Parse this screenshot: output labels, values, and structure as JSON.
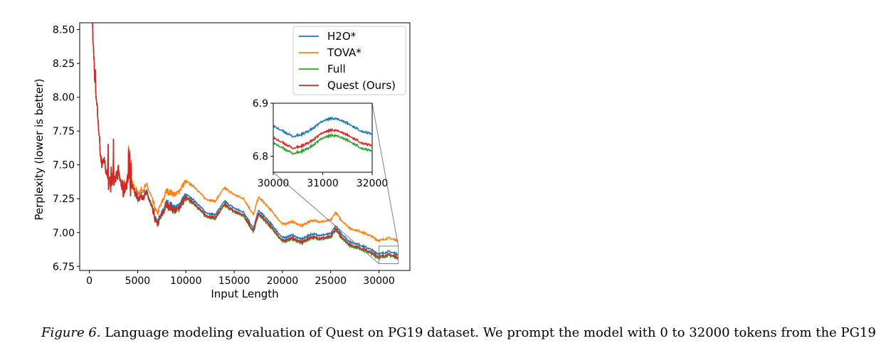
{
  "chart_data": {
    "type": "line",
    "title": "",
    "xlabel": "Input Length",
    "ylabel": "Perplexity (lower is better)",
    "xlim": [
      -1000,
      33200
    ],
    "ylim": [
      6.72,
      8.55
    ],
    "xticks": [
      0,
      5000,
      10000,
      15000,
      20000,
      25000,
      30000
    ],
    "yticks": [
      6.75,
      7.0,
      7.25,
      7.5,
      7.75,
      8.0,
      8.25,
      8.5
    ],
    "xtick_labels": [
      "0",
      "5000",
      "10000",
      "15000",
      "20000",
      "25000",
      "30000"
    ],
    "ytick_labels": [
      "6.75",
      "7.00",
      "7.25",
      "7.50",
      "7.75",
      "8.00",
      "8.25",
      "8.50"
    ],
    "grid": false,
    "legend_position": "top-right",
    "series": [
      {
        "name": "H2O*",
        "color": "#1f77b4",
        "offset_from_full": 0.03
      },
      {
        "name": "TOVA*",
        "color": "#ff7f0e",
        "offset_from_full": 0.13
      },
      {
        "name": "Full",
        "color": "#2ca02c",
        "offset_from_full": 0.0
      },
      {
        "name": "Quest (Ours)",
        "color": "#d62728",
        "offset_from_full": 0.01
      }
    ],
    "base_curve": {
      "x": [
        0,
        300,
        600,
        900,
        1200,
        1500,
        2000,
        2500,
        3000,
        3500,
        4000,
        5000,
        6000,
        7000,
        7500,
        8000,
        9000,
        10000,
        11000,
        12000,
        13000,
        14000,
        15000,
        16000,
        17000,
        17500,
        18000,
        19000,
        20000,
        21000,
        22000,
        23000,
        24000,
        25000,
        25500,
        26000,
        27000,
        28000,
        29000,
        30000,
        30500,
        31000,
        31500,
        32000
      ],
      "y": [
        8.15,
        8.55,
        8.05,
        7.85,
        7.5,
        7.55,
        7.35,
        7.4,
        7.45,
        7.3,
        7.4,
        7.25,
        7.28,
        7.05,
        7.12,
        7.2,
        7.15,
        7.25,
        7.2,
        7.12,
        7.1,
        7.2,
        7.15,
        7.12,
        7.0,
        7.13,
        7.1,
        7.02,
        6.93,
        6.95,
        6.92,
        6.96,
        6.95,
        6.96,
        7.02,
        6.97,
        6.9,
        6.88,
        6.85,
        6.81,
        6.82,
        6.83,
        6.82,
        6.81
      ]
    },
    "inset": {
      "xlim": [
        30000,
        32000
      ],
      "ylim": [
        6.77,
        6.9
      ],
      "xticks": [
        30000,
        31000,
        32000
      ],
      "yticks": [
        6.8,
        6.9
      ],
      "xtick_labels": [
        "30000",
        "31000",
        "32000"
      ],
      "ytick_labels": [
        "6.8",
        "6.9"
      ],
      "detail": {
        "x": [
          30000,
          30200,
          30400,
          30600,
          30800,
          31000,
          31200,
          31400,
          31600,
          31800,
          32000
        ],
        "full_y": [
          6.825,
          6.815,
          6.805,
          6.81,
          6.82,
          6.835,
          6.84,
          6.835,
          6.825,
          6.815,
          6.81
        ],
        "offsets": {
          "H2O*": 0.032,
          "TOVA*": 0.13,
          "Full": 0.0,
          "Quest (Ours)": 0.01
        }
      }
    }
  },
  "caption": {
    "figure_label": "Figure 6.",
    "text": " Language modeling evaluation of Quest on PG19 dataset. We prompt the model with 0 to 32000 tokens from the PG19"
  }
}
